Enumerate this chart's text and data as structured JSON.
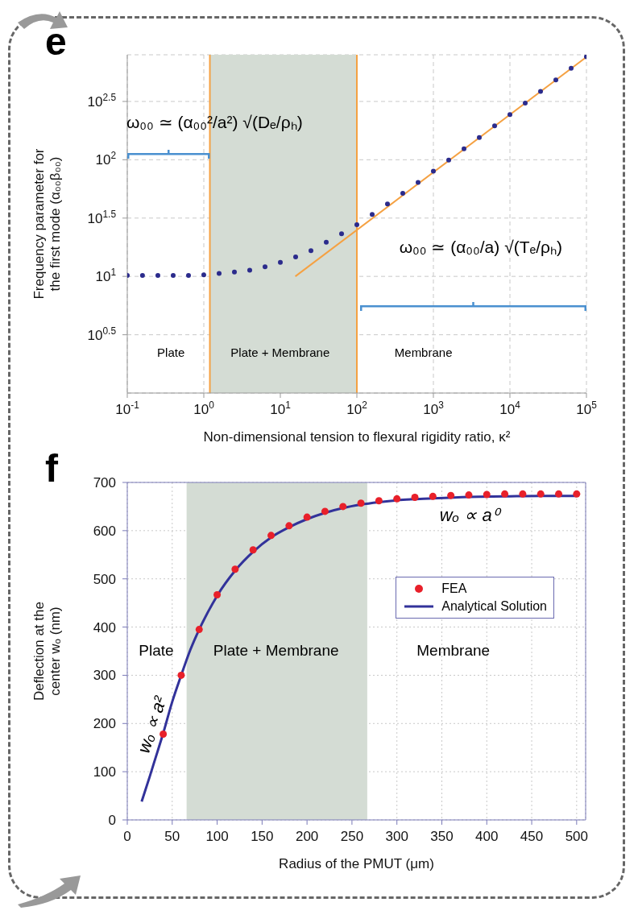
{
  "chart_data": [
    {
      "type": "scatter",
      "title": "e",
      "xlabel": "Non-dimensional tension to flexural rigidity ratio, κ²",
      "ylabel": "Frequency parameter for the first mode (α₀₀β₀₀)",
      "log": "xy",
      "grid": true,
      "xlim": [
        0.1,
        100000
      ],
      "xticks": [
        {
          "value": 0.1,
          "label": "10$^{-1}$"
        },
        {
          "value": 1,
          "label": "10$^{0}$"
        },
        {
          "value": 10,
          "label": "10$^{1}$"
        },
        {
          "value": 100,
          "label": "10$^{2}$"
        },
        {
          "value": 1000,
          "label": "10$^{3}$"
        },
        {
          "value": 10000,
          "label": "10$^{4}$"
        },
        {
          "value": 100000,
          "label": "10$^{5}$"
        }
      ],
      "ylim": [
        1,
        794
      ],
      "yticks": [
        {
          "value": 3.16,
          "label": "10$^{0.5}$"
        },
        {
          "value": 10,
          "label": "10$^{1}$"
        },
        {
          "value": 31.6,
          "label": "10$^{1.5}$"
        },
        {
          "value": 100,
          "label": "10$^{2}$"
        },
        {
          "value": 316,
          "label": "10$^{2.5}$"
        }
      ],
      "series": [
        {
          "type": "scatter",
          "color": "#2b2b8c",
          "x": [
            0.1,
            0.158,
            0.251,
            0.398,
            0.631,
            1,
            1.585,
            2.512,
            3.981,
            6.31,
            10,
            15.85,
            25.12,
            39.81,
            63.1,
            100,
            158.5,
            251.2,
            398.1,
            631,
            1000,
            1585,
            2512,
            3981,
            6310,
            10000,
            15849,
            25119,
            39811,
            63096,
            100000
          ],
          "values": [
            10.2,
            10.2,
            10.2,
            10.2,
            10.2,
            10.3,
            10.6,
            10.9,
            11.3,
            12.1,
            13.2,
            14.7,
            16.6,
            19.6,
            23.2,
            27.7,
            33.9,
            41.7,
            51.6,
            64,
            79.7,
            99.3,
            124,
            155,
            195,
            244,
            306,
            385,
            483,
            608,
            764
          ]
        },
        {
          "type": "line",
          "color": "#f5a142",
          "x": [
            15.7,
            100000
          ],
          "values": [
            10,
            760
          ]
        }
      ],
      "bands": [
        {
          "axis": "x",
          "from": 1.2,
          "to": 100,
          "color": "#d4dcd4"
        }
      ],
      "ref_lines": [
        {
          "axis": "x",
          "value": 1.2,
          "color": "#f5a142"
        },
        {
          "axis": "x",
          "value": 100,
          "color": "#f5a142"
        }
      ],
      "annotations": [
        "ω₀₀ ≃ (α₀₀²/a²) √(Dₑ/ρₕ)",
        "ω₀₀ ≃ (α₀₀/a) √(Tₑ/ρₕ)",
        "Plate",
        "Plate + Membrane",
        "Membrane"
      ]
    },
    {
      "type": "scatter",
      "title": "f",
      "xlabel": "Radius of the PMUT  (μm)",
      "ylabel": "Deflection at the center wₒ (nm)",
      "grid": true,
      "legend": "top right",
      "xlim": [
        0,
        510
      ],
      "xticks": [
        0,
        50,
        100,
        150,
        200,
        250,
        300,
        350,
        400,
        450,
        500
      ],
      "ylim": [
        0,
        700
      ],
      "yticks": [
        0,
        100,
        200,
        300,
        400,
        500,
        600,
        700
      ],
      "series": [
        {
          "type": "scatter",
          "name": "FEA",
          "color": "#e8202a",
          "x": [
            40,
            60,
            80,
            100,
            120,
            140,
            160,
            180,
            200,
            220,
            240,
            260,
            280,
            300,
            320,
            340,
            360,
            380,
            400,
            420,
            440,
            460,
            480,
            500
          ],
          "values": [
            178,
            300,
            395,
            467,
            520,
            560,
            590,
            610,
            628,
            640,
            650,
            657,
            662,
            666,
            669,
            671,
            673,
            674,
            675,
            676,
            676,
            676,
            676,
            676
          ]
        },
        {
          "type": "line",
          "name": "Analytical Solution",
          "color": "#32329a",
          "x": [
            16,
            25,
            30,
            40,
            50,
            60,
            70,
            80,
            90,
            100,
            120,
            140,
            160,
            180,
            200,
            220,
            240,
            260,
            280,
            300,
            340,
            380,
            420,
            460,
            500
          ],
          "values": [
            38,
            90,
            120,
            180,
            245,
            300,
            352,
            395,
            432,
            465,
            517,
            556,
            586,
            607,
            624,
            637,
            647,
            654,
            659,
            663,
            667,
            670,
            671,
            672,
            672
          ]
        }
      ],
      "bands": [
        {
          "axis": "x",
          "from": 66,
          "to": 267,
          "color": "#d4dcd4"
        }
      ],
      "annotations": [
        "Plate",
        "Plate + Membrane",
        "Membrane",
        "wₒ ∝ a⁰",
        "wₒ ∝ a²"
      ]
    }
  ]
}
